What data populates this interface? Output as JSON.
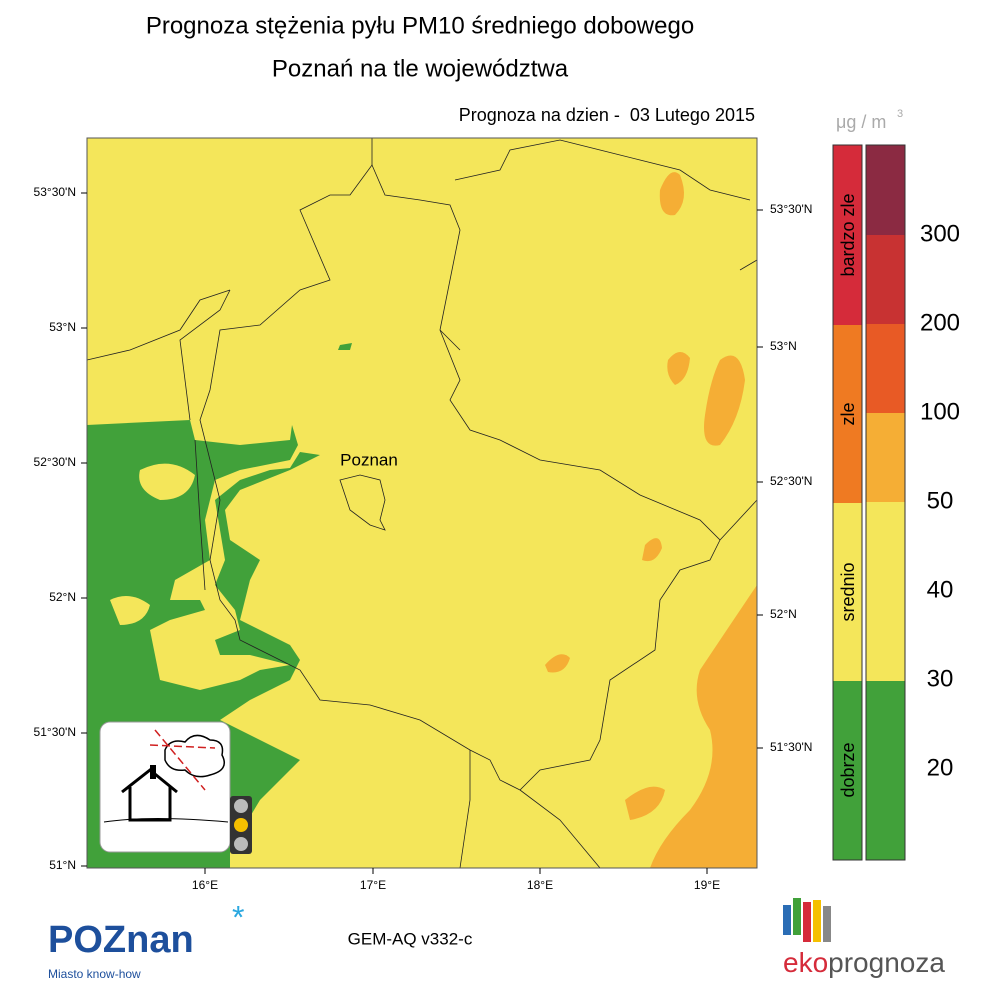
{
  "header": {
    "title": "Prognoza stężenia pyłu PM10 średniego dobowego",
    "subtitle": "Poznań na tle województwa",
    "date": "Prognoza na dzien -  03 Lutego 2015"
  },
  "map": {
    "city": "Poznan",
    "left_lat_labels": [
      "53°30'N",
      "53°N",
      "52°30'N",
      "52°N",
      "51°30'N",
      "51°N"
    ],
    "right_lat_labels": [
      "53°30'N",
      "53°N",
      "52°30'N",
      "52°N",
      "51°30'N"
    ],
    "lon_labels": [
      "16°E",
      "17°E",
      "18°E",
      "19°E"
    ]
  },
  "legend": {
    "unit": [
      "μg / m",
      "3"
    ],
    "categories": [
      "bardzo zle",
      "zle",
      "srednio",
      "dobrze"
    ],
    "levels": [
      300,
      200,
      100,
      50,
      40,
      30,
      20
    ]
  },
  "footer": {
    "model": "GEM-AQ v332-c",
    "logo_left": "POZnan",
    "tagline": "Miasto know-how",
    "logo_right": [
      "eko",
      "prognoza"
    ]
  }
}
